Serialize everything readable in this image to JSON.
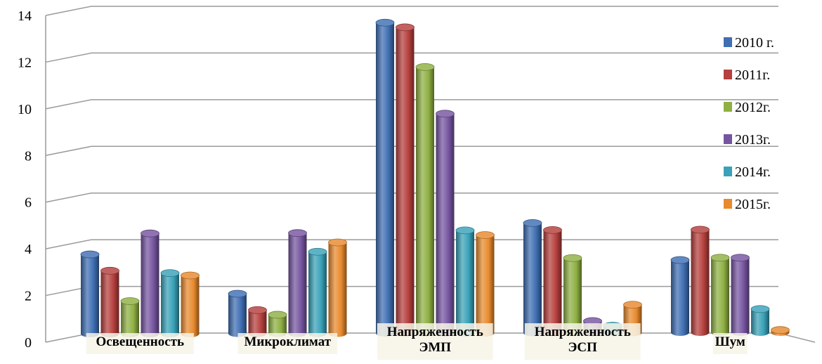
{
  "chart_data": {
    "type": "bar",
    "title": "",
    "xlabel": "",
    "ylabel": "",
    "ylim": [
      0,
      14
    ],
    "yticks": [
      0,
      2,
      4,
      6,
      8,
      10,
      12,
      14
    ],
    "grid": true,
    "legend_position": "right",
    "categories": [
      [
        "Освещенность"
      ],
      [
        "Микроклимат"
      ],
      [
        "Напряженность",
        "ЭМП"
      ],
      [
        "Напряженность",
        "ЭСП"
      ],
      [
        "Шум"
      ]
    ],
    "series": [
      {
        "name": "2010 г.",
        "color": "#3f6fb3",
        "values": [
          3.4,
          1.7,
          13.3,
          4.7,
          3.1
        ]
      },
      {
        "name": "2011г.",
        "color": "#b5403d",
        "values": [
          2.7,
          1.0,
          13.1,
          4.4,
          4.4
        ]
      },
      {
        "name": "2012г.",
        "color": "#8fb043",
        "values": [
          1.4,
          0.8,
          11.4,
          3.2,
          3.2
        ]
      },
      {
        "name": "2013г.",
        "color": "#7655a0",
        "values": [
          4.3,
          4.3,
          9.4,
          0.5,
          3.2
        ]
      },
      {
        "name": "2014г.",
        "color": "#39a2b8",
        "values": [
          2.6,
          3.5,
          4.4,
          0.3,
          1.0
        ]
      },
      {
        "name": "2015г.",
        "color": "#e88a2e",
        "values": [
          2.5,
          3.9,
          4.2,
          1.2,
          0.1
        ]
      }
    ]
  }
}
